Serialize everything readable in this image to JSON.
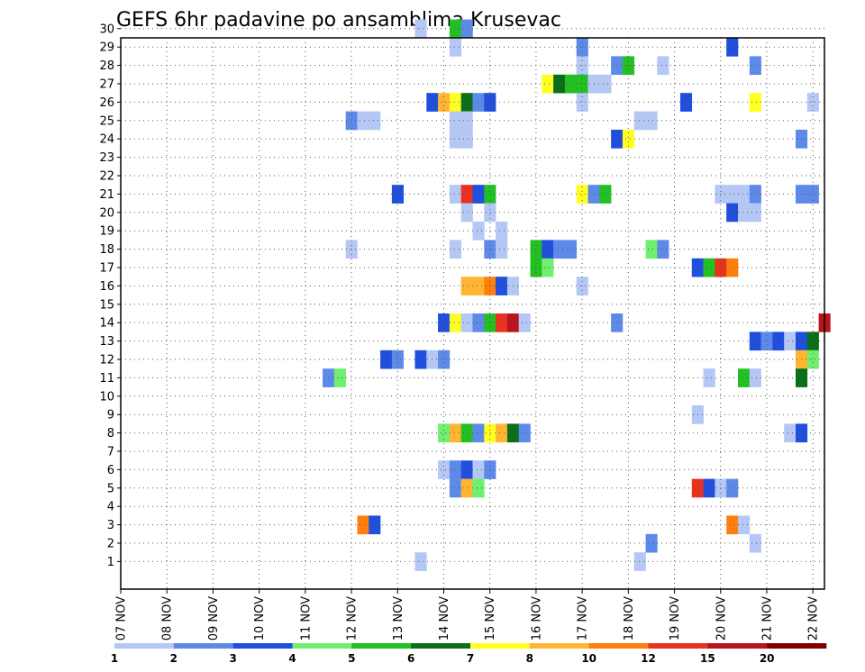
{
  "chart_data": {
    "type": "heatmap",
    "title": "GEFS 6hr padavine po ansamblima Krusevac",
    "xlabel": "",
    "ylabel": "",
    "x_tick_labels": [
      "07 NOV",
      "08 NOV",
      "09 NOV",
      "10 NOV",
      "11 NOV",
      "12 NOV",
      "13 NOV",
      "14 NOV",
      "15 NOV",
      "16 NOV",
      "17 NOV",
      "18 NOV",
      "19 NOV",
      "20 NOV",
      "21 NOV",
      "22 NOV"
    ],
    "y_tick_labels": [
      "1",
      "2",
      "3",
      "4",
      "5",
      "6",
      "7",
      "8",
      "9",
      "10",
      "11",
      "12",
      "13",
      "14",
      "15",
      "16",
      "17",
      "18",
      "19",
      "20",
      "21",
      "22",
      "23",
      "24",
      "25",
      "26",
      "27",
      "28",
      "29",
      "30"
    ],
    "time_step_hours": 6,
    "members": 30,
    "grid": true,
    "legend": {
      "placement": "bottom",
      "labels": [
        "1",
        "2",
        "3",
        "4",
        "5",
        "6",
        "7",
        "8",
        "10",
        "12",
        "15",
        "20"
      ],
      "colors": [
        "#b4c7f5",
        "#5d8ae8",
        "#1f4fdc",
        "#6ef06e",
        "#22c022",
        "#0b6e18",
        "#ffff22",
        "#ffb432",
        "#ff7f0e",
        "#e8321e",
        "#b8141e",
        "#800000"
      ]
    },
    "colors": [
      "#b4c7f5",
      "#5d8ae8",
      "#1f4fdc",
      "#6ef06e",
      "#22c022",
      "#0b6e18",
      "#ffff22",
      "#ffb432",
      "#ff7f0e",
      "#e8321e",
      "#b8141e",
      "#800000"
    ],
    "cells_note": "each cell: [member, six_hour_step_index from 07 NOV 00Z, color_class 0-11]",
    "cells": [
      [
        30,
        26,
        0
      ],
      [
        30,
        29,
        4
      ],
      [
        30,
        30,
        1
      ],
      [
        29,
        29,
        0
      ],
      [
        29,
        40,
        1
      ],
      [
        29,
        53,
        2
      ],
      [
        28,
        40,
        0
      ],
      [
        28,
        43,
        1
      ],
      [
        28,
        44,
        4
      ],
      [
        28,
        47,
        0
      ],
      [
        28,
        55,
        1
      ],
      [
        27,
        37,
        6
      ],
      [
        27,
        38,
        5
      ],
      [
        27,
        39,
        4
      ],
      [
        27,
        40,
        4
      ],
      [
        27,
        41,
        0
      ],
      [
        27,
        42,
        0
      ],
      [
        26,
        27,
        2
      ],
      [
        26,
        28,
        7
      ],
      [
        26,
        29,
        6
      ],
      [
        26,
        30,
        5
      ],
      [
        26,
        31,
        1
      ],
      [
        26,
        32,
        2
      ],
      [
        26,
        40,
        0
      ],
      [
        26,
        49,
        2
      ],
      [
        26,
        55,
        6
      ],
      [
        26,
        60,
        0
      ],
      [
        25,
        20,
        1
      ],
      [
        25,
        21,
        0
      ],
      [
        25,
        22,
        0
      ],
      [
        25,
        29,
        0
      ],
      [
        25,
        30,
        0
      ],
      [
        25,
        45,
        0
      ],
      [
        25,
        46,
        0
      ],
      [
        24,
        29,
        0
      ],
      [
        24,
        30,
        0
      ],
      [
        24,
        43,
        2
      ],
      [
        24,
        44,
        6
      ],
      [
        24,
        59,
        1
      ],
      [
        21,
        24,
        2
      ],
      [
        21,
        29,
        0
      ],
      [
        21,
        30,
        9
      ],
      [
        21,
        31,
        2
      ],
      [
        21,
        32,
        4
      ],
      [
        21,
        40,
        6
      ],
      [
        21,
        41,
        1
      ],
      [
        21,
        42,
        4
      ],
      [
        21,
        52,
        0
      ],
      [
        21,
        53,
        0
      ],
      [
        21,
        54,
        0
      ],
      [
        21,
        55,
        1
      ],
      [
        21,
        59,
        1
      ],
      [
        21,
        60,
        1
      ],
      [
        20,
        30,
        0
      ],
      [
        20,
        32,
        0
      ],
      [
        20,
        53,
        2
      ],
      [
        20,
        54,
        0
      ],
      [
        20,
        55,
        0
      ],
      [
        19,
        31,
        0
      ],
      [
        19,
        33,
        0
      ],
      [
        18,
        20,
        0
      ],
      [
        18,
        29,
        0
      ],
      [
        18,
        32,
        1
      ],
      [
        18,
        33,
        0
      ],
      [
        18,
        36,
        4
      ],
      [
        18,
        37,
        2
      ],
      [
        18,
        38,
        1
      ],
      [
        18,
        39,
        1
      ],
      [
        18,
        46,
        3
      ],
      [
        18,
        47,
        1
      ],
      [
        17,
        36,
        4
      ],
      [
        17,
        37,
        3
      ],
      [
        17,
        50,
        2
      ],
      [
        17,
        51,
        4
      ],
      [
        17,
        52,
        9
      ],
      [
        17,
        53,
        8
      ],
      [
        16,
        30,
        7
      ],
      [
        16,
        31,
        7
      ],
      [
        16,
        32,
        8
      ],
      [
        16,
        33,
        2
      ],
      [
        16,
        34,
        0
      ],
      [
        16,
        40,
        0
      ],
      [
        14,
        28,
        2
      ],
      [
        14,
        29,
        6
      ],
      [
        14,
        30,
        0
      ],
      [
        14,
        31,
        1
      ],
      [
        14,
        32,
        4
      ],
      [
        14,
        33,
        9
      ],
      [
        14,
        34,
        10
      ],
      [
        14,
        35,
        0
      ],
      [
        14,
        43,
        1
      ],
      [
        14,
        61,
        10
      ],
      [
        13,
        55,
        2
      ],
      [
        13,
        56,
        1
      ],
      [
        13,
        57,
        2
      ],
      [
        13,
        58,
        0
      ],
      [
        13,
        59,
        2
      ],
      [
        13,
        60,
        5
      ],
      [
        12,
        23,
        2
      ],
      [
        12,
        24,
        1
      ],
      [
        12,
        26,
        2
      ],
      [
        12,
        27,
        0
      ],
      [
        12,
        28,
        1
      ],
      [
        12,
        59,
        7
      ],
      [
        12,
        60,
        3
      ],
      [
        11,
        18,
        1
      ],
      [
        11,
        19,
        3
      ],
      [
        11,
        51,
        0
      ],
      [
        11,
        54,
        4
      ],
      [
        11,
        55,
        0
      ],
      [
        11,
        59,
        5
      ],
      [
        9,
        50,
        0
      ],
      [
        8,
        28,
        3
      ],
      [
        8,
        29,
        7
      ],
      [
        8,
        30,
        4
      ],
      [
        8,
        31,
        1
      ],
      [
        8,
        32,
        6
      ],
      [
        8,
        33,
        7
      ],
      [
        8,
        34,
        5
      ],
      [
        8,
        35,
        1
      ],
      [
        8,
        58,
        0
      ],
      [
        8,
        59,
        2
      ],
      [
        6,
        28,
        0
      ],
      [
        6,
        29,
        1
      ],
      [
        6,
        30,
        2
      ],
      [
        6,
        31,
        0
      ],
      [
        6,
        32,
        1
      ],
      [
        5,
        29,
        1
      ],
      [
        5,
        30,
        7
      ],
      [
        5,
        31,
        3
      ],
      [
        5,
        50,
        9
      ],
      [
        5,
        51,
        2
      ],
      [
        5,
        52,
        0
      ],
      [
        5,
        53,
        1
      ],
      [
        3,
        21,
        8
      ],
      [
        3,
        22,
        2
      ],
      [
        3,
        53,
        8
      ],
      [
        3,
        54,
        0
      ],
      [
        2,
        46,
        1
      ],
      [
        2,
        55,
        0
      ],
      [
        1,
        26,
        0
      ],
      [
        1,
        45,
        0
      ]
    ]
  }
}
